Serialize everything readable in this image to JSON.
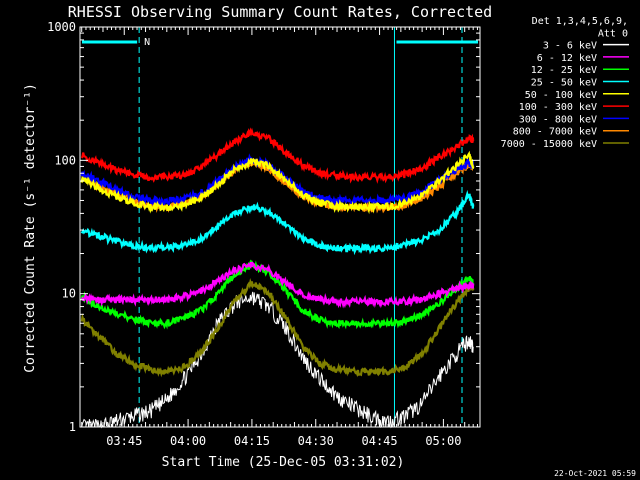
{
  "chart_data": {
    "type": "line",
    "title": "RHESSI Observing Summary Count Rates, Corrected",
    "xlabel": "Start Time (25-Dec-05 03:31:02)",
    "ylabel": "Corrected Count Rate (s⁻¹ detector⁻¹)",
    "ylog": true,
    "ylim": [
      1,
      1000
    ],
    "xlim_minutes": [
      3.6,
      97.6
    ],
    "x_ticks": [
      {
        "label": "03:45",
        "minutes": 14
      },
      {
        "label": "04:00",
        "minutes": 29
      },
      {
        "label": "04:15",
        "minutes": 44
      },
      {
        "label": "04:30",
        "minutes": 59
      },
      {
        "label": "04:45",
        "minutes": 74
      },
      {
        "label": "05:00",
        "minutes": 89
      }
    ],
    "y_ticks": [
      {
        "label": "1",
        "value": 1
      },
      {
        "label": "10",
        "value": 10
      },
      {
        "label": "100",
        "value": 100
      },
      {
        "label": "1000",
        "value": 1000
      }
    ],
    "legend_header": [
      "Det 1,3,4,5,6,9,",
      "Att 0"
    ],
    "legend_position": "right",
    "x_minutes": [
      4,
      8,
      12,
      16,
      20,
      24,
      28,
      32,
      36,
      40,
      44,
      48,
      52,
      56,
      60,
      64,
      68,
      72,
      76,
      80,
      84,
      88,
      92,
      95,
      96
    ],
    "series": [
      {
        "name": "3 - 6 keV",
        "color": "#ffffff",
        "values": [
          1.0,
          1.0,
          1.1,
          1.2,
          1.3,
          1.6,
          2.3,
          3.5,
          6.0,
          8.5,
          9.5,
          8.0,
          5.5,
          3.3,
          2.3,
          1.7,
          1.4,
          1.2,
          1.1,
          1.2,
          1.5,
          2.4,
          3.5,
          4.5,
          4.0
        ]
      },
      {
        "name": "6 - 12 keV",
        "color": "#ff00ff",
        "values": [
          9.5,
          9.0,
          9.0,
          9.0,
          9.0,
          9.0,
          9.5,
          10.5,
          12.5,
          15.0,
          16.5,
          15.0,
          12.0,
          10.0,
          9.0,
          8.7,
          8.7,
          8.7,
          8.7,
          8.8,
          9.0,
          10.0,
          11.0,
          11.5,
          11.5
        ]
      },
      {
        "name": "12 - 25 keV",
        "color": "#00ff00",
        "values": [
          9.5,
          8.0,
          7.0,
          6.5,
          6.0,
          6.0,
          6.5,
          7.5,
          10.0,
          14.0,
          16.5,
          14.5,
          10.5,
          7.5,
          6.3,
          6.0,
          6.0,
          6.0,
          6.0,
          6.2,
          7.0,
          8.5,
          11.0,
          13.0,
          12.0
        ]
      },
      {
        "name": "25 - 50 keV",
        "color": "#00ffff",
        "values": [
          30,
          27,
          25,
          23,
          22,
          22,
          23,
          26,
          32,
          40,
          45,
          41,
          33,
          26,
          23,
          22,
          22,
          22,
          22,
          23,
          25,
          30,
          40,
          55,
          45
        ]
      },
      {
        "name": "50 - 100 keV",
        "color": "#ffff00",
        "values": [
          72,
          62,
          54,
          48,
          45,
          44,
          46,
          52,
          65,
          85,
          100,
          90,
          70,
          55,
          48,
          45,
          45,
          45,
          45,
          47,
          55,
          70,
          90,
          110,
          90
        ]
      },
      {
        "name": "100 - 300 keV",
        "color": "#ff0000",
        "values": [
          110,
          95,
          85,
          78,
          75,
          75,
          78,
          88,
          110,
          140,
          160,
          145,
          115,
          92,
          80,
          76,
          75,
          75,
          75,
          78,
          88,
          105,
          125,
          145,
          140
        ]
      },
      {
        "name": "300 - 800 keV",
        "color": "#0000ff",
        "values": [
          80,
          70,
          60,
          54,
          50,
          49,
          51,
          57,
          70,
          90,
          103,
          92,
          73,
          58,
          52,
          50,
          50,
          50,
          50,
          52,
          58,
          70,
          85,
          95,
          90
        ]
      },
      {
        "name": "800 - 7000 keV",
        "color": "#ff8800",
        "values": [
          75,
          64,
          56,
          50,
          46,
          45,
          47,
          53,
          65,
          84,
          97,
          87,
          68,
          54,
          47,
          44,
          44,
          44,
          44,
          46,
          52,
          64,
          80,
          92,
          88
        ]
      },
      {
        "name": "7000 - 15000 keV",
        "color": "#808000",
        "values": [
          6.5,
          4.8,
          3.6,
          3.0,
          2.7,
          2.6,
          2.8,
          3.6,
          5.5,
          9.0,
          12.0,
          10.0,
          6.5,
          4.0,
          3.0,
          2.7,
          2.6,
          2.6,
          2.6,
          2.8,
          3.5,
          5.5,
          8.5,
          11.0,
          11.0
        ]
      }
    ],
    "night_intervals_minutes": [
      [
        3.6,
        17.5
      ],
      [
        77.5,
        97.6
      ]
    ],
    "saa_flag_label": "N",
    "footer_date": "22-Oct-2021 05:59"
  }
}
